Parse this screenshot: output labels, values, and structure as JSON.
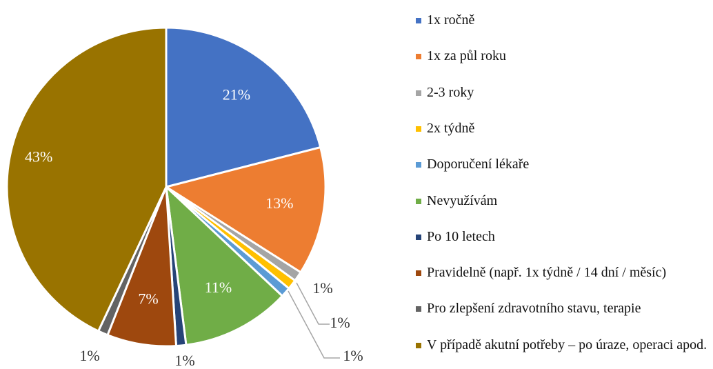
{
  "chart_data": {
    "type": "pie",
    "categories": [
      "1x ročně",
      "1x za půl roku",
      "2-3 roky",
      "2x týdně",
      "Doporučení lékaře",
      "Nevyužívám",
      "Po 10 letech",
      "Pravidelně (např. 1x týdně / 14 dní / měsíc)",
      "Pro zlepšení zdravotního stavu, terapie",
      "V případě akutní potřeby – po úraze, operaci apod."
    ],
    "values": [
      21,
      13,
      1,
      1,
      1,
      11,
      1,
      7,
      1,
      43
    ],
    "value_labels": [
      "21%",
      "13%",
      "1%",
      "1%",
      "1%",
      "11%",
      "1%",
      "7%",
      "1%",
      "43%"
    ],
    "colors": [
      "#4472c4",
      "#ed7d31",
      "#a5a5a5",
      "#ffc000",
      "#5b9bd5",
      "#70ad47",
      "#264478",
      "#9e480e",
      "#636363",
      "#997300"
    ],
    "legend": "right"
  }
}
